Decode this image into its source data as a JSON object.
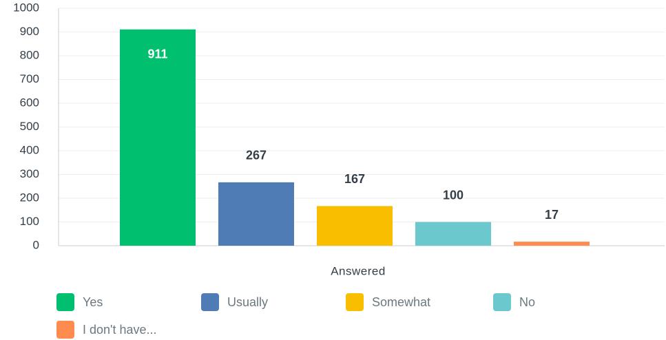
{
  "chart_data": {
    "type": "bar",
    "categories": [
      "Answered"
    ],
    "series": [
      {
        "name": "Yes",
        "color": "#00bf6f",
        "values": [
          911
        ]
      },
      {
        "name": "Usually",
        "color": "#507cb6",
        "values": [
          267
        ]
      },
      {
        "name": "Somewhat",
        "color": "#f9be00",
        "values": [
          167
        ]
      },
      {
        "name": "No",
        "color": "#6bc8cd",
        "values": [
          100
        ]
      },
      {
        "name": "I don't have...",
        "color": "#ff8b4f",
        "values": [
          17
        ]
      }
    ],
    "ylim": [
      0,
      1000
    ],
    "yticks": [
      0,
      100,
      200,
      300,
      400,
      500,
      600,
      700,
      800,
      900,
      1000
    ],
    "grid": true,
    "legend": "bottom"
  }
}
